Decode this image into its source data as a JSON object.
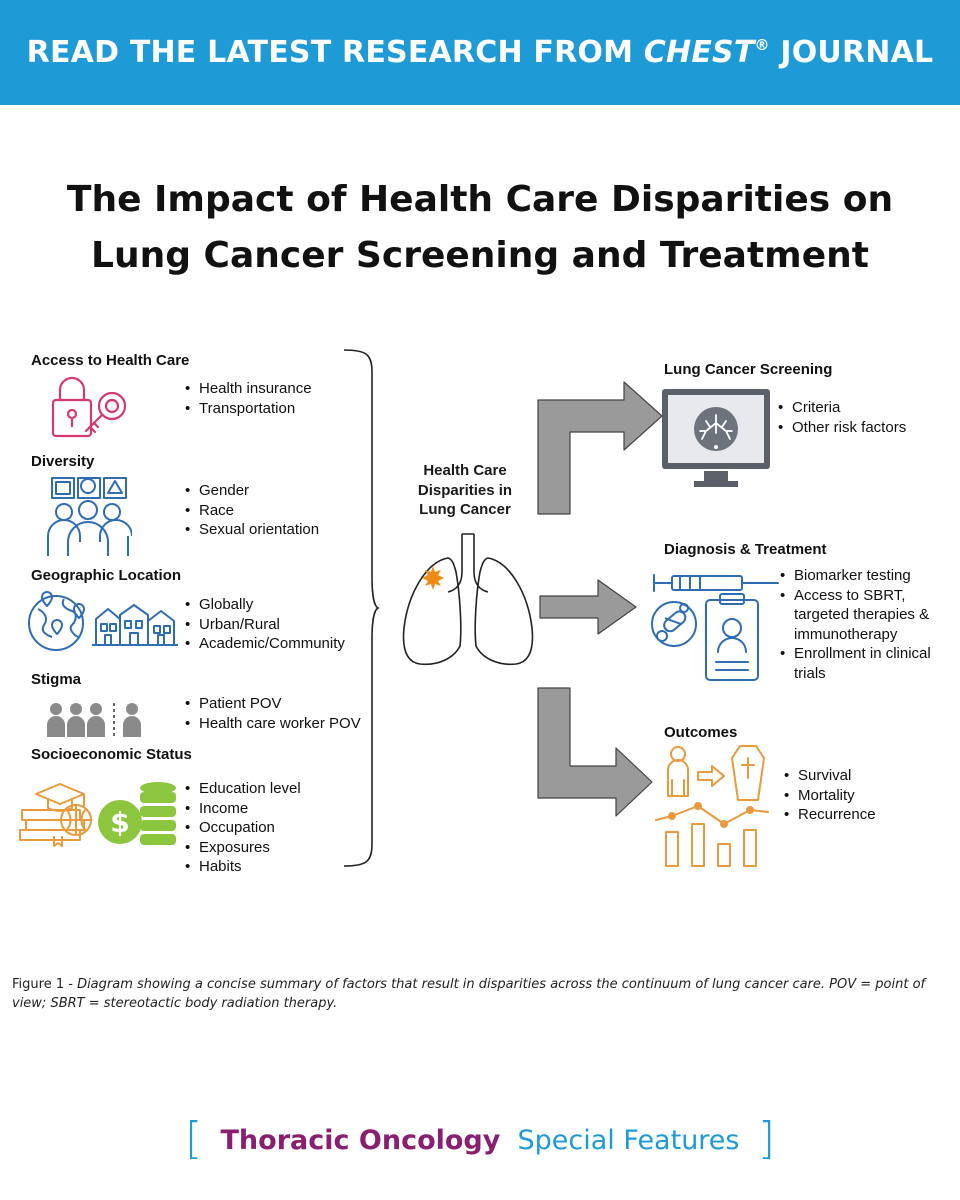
{
  "banner": {
    "prefix": "READ THE LATEST RESEARCH FROM ",
    "journal": "CHEST",
    "mark": "®",
    "suffix": " JOURNAL",
    "color": "#1e9bd7"
  },
  "title": "The Impact of Health Care Disparities on Lung Cancer Screening and Treatment",
  "factors": [
    {
      "heading": "Access to Health Care",
      "items": [
        "Health insurance",
        "Transportation"
      ],
      "icon": "lock-key-icon"
    },
    {
      "heading": "Diversity",
      "items": [
        "Gender",
        "Race",
        "Sexual orientation"
      ],
      "icon": "people-speech-icon"
    },
    {
      "heading": "Geographic Location",
      "items": [
        "Globally",
        "Urban/Rural",
        "Academic/Community"
      ],
      "icon": "globe-houses-icon"
    },
    {
      "heading": "Stigma",
      "items": [
        "Patient POV",
        "Health care worker POV"
      ],
      "icon": "people-divider-icon"
    },
    {
      "heading": "Socioeconomic Status",
      "items": [
        "Education level",
        "Income",
        "Occupation",
        "Exposures",
        "Habits"
      ],
      "icon": "books-money-icon"
    }
  ],
  "center": {
    "label": "Health Care Disparities in Lung Cancer",
    "icon": "lungs-icon"
  },
  "outcomes": [
    {
      "heading": "Lung Cancer Screening",
      "items": [
        "Criteria",
        "Other risk factors"
      ],
      "icon": "monitor-scan-icon"
    },
    {
      "heading": "Diagnosis & Treatment",
      "items": [
        "Biomarker testing",
        "Access to SBRT, targeted therapies & immunotherapy",
        "Enrollment in clinical trials"
      ],
      "icon": "syringe-clipboard-icon"
    },
    {
      "heading": "Outcomes",
      "items": [
        "Survival",
        "Mortality",
        "Recurrence"
      ],
      "icon": "person-coffin-chart-icon"
    }
  ],
  "caption": {
    "lead": "Figure 1 - ",
    "text": "Diagram showing a concise summary of factors that result in disparities across the continuum of lung cancer care. POV = point of view; SBRT = stereotactic body radiation therapy."
  },
  "footer": {
    "part1": "Thoracic Oncology",
    "part2": "Special Features",
    "bracket_open": "[",
    "bracket_close": "]"
  },
  "colors": {
    "access": "#d63a6b",
    "diversity": "#2f6db3",
    "geographic": "#2f6db3",
    "stigma": "#8a8a8a",
    "socioeconomic_orange": "#e89a3c",
    "socioeconomic_green": "#8cc63f",
    "diagnosis": "#2f6db3",
    "outcomes": "#e89a3c",
    "arrow": "#9a9a9a",
    "footer_purple": "#8a1e6f"
  }
}
